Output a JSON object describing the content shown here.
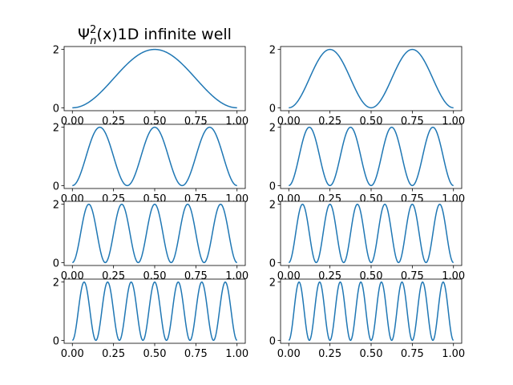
{
  "chart_data": {
    "type": "line",
    "title": "Ψ²ₙ(x)1D infinite well",
    "title_parts": {
      "base": "Ψ",
      "sup": "2",
      "sub": "n",
      "rest": "(x)1D infinite well"
    },
    "layout": "4 rows x 2 columns",
    "function": "2*sin^2(n*pi*x)",
    "xlim": [
      -0.05,
      1.05
    ],
    "ylim": [
      -0.1,
      2.1
    ],
    "xticks": [
      "0.00",
      "0.25",
      "0.50",
      "0.75",
      "1.00"
    ],
    "xtick_values": [
      0,
      0.25,
      0.5,
      0.75,
      1.0
    ],
    "yticks": [
      "0",
      "2"
    ],
    "ytick_values": [
      0,
      2
    ],
    "line_color": "#1f77b4",
    "series": [
      {
        "name": "n=1",
        "n": 1
      },
      {
        "name": "n=2",
        "n": 2
      },
      {
        "name": "n=3",
        "n": 3
      },
      {
        "name": "n=4",
        "n": 4
      },
      {
        "name": "n=5",
        "n": 5
      },
      {
        "name": "n=6",
        "n": 6
      },
      {
        "name": "n=7",
        "n": 7
      },
      {
        "name": "n=8",
        "n": 8
      }
    ]
  }
}
